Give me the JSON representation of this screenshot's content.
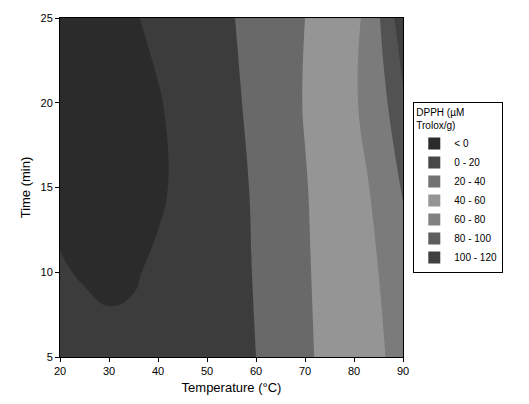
{
  "chart_data": {
    "type": "contour",
    "x_label": "Temperature (°C)",
    "y_label": "Time (min)",
    "legend_title": "DPPH (µM Trolox/g)",
    "x": [
      20,
      25,
      30,
      35,
      40,
      45,
      50,
      55,
      60,
      65,
      70,
      75,
      80,
      85,
      90
    ],
    "y": [
      5,
      10,
      15,
      20,
      25
    ],
    "z": [
      [
        8,
        5,
        3,
        3,
        5,
        8,
        11,
        15,
        20,
        28,
        37,
        45,
        52,
        58,
        65
      ],
      [
        1,
        -1,
        -2,
        -1,
        2,
        6,
        10,
        15,
        21,
        29,
        38,
        46,
        53,
        60,
        70
      ],
      [
        -3,
        -6,
        -7,
        -6,
        -2,
        3,
        9,
        15,
        22,
        30,
        39,
        47,
        55,
        63,
        82
      ],
      [
        -6,
        -7,
        -7,
        -5,
        -1,
        4,
        10,
        17,
        24,
        32,
        41,
        50,
        58,
        70,
        97
      ],
      [
        -5,
        -5,
        -4,
        -1,
        3,
        6,
        12,
        19,
        26,
        33,
        40,
        47,
        53,
        78,
        112
      ]
    ],
    "levels": [
      0,
      20,
      40,
      60,
      80,
      100,
      120
    ],
    "level_labels": [
      "< 0",
      "0 - 20",
      "20 - 40",
      "40 - 60",
      "60 - 80",
      "80 - 100",
      "100 - 120"
    ],
    "colors": [
      "#2b2b2b",
      "#474747",
      "#727272",
      "#959595",
      "#828282",
      "#5e5e5e",
      "#404040"
    ],
    "xlim": [
      20,
      90
    ],
    "ylim": [
      5,
      25
    ],
    "xticks": [
      20,
      30,
      40,
      50,
      60,
      70,
      80,
      90
    ],
    "yticks": [
      5,
      10,
      15,
      20,
      25
    ],
    "legend": "right",
    "grid": false
  }
}
